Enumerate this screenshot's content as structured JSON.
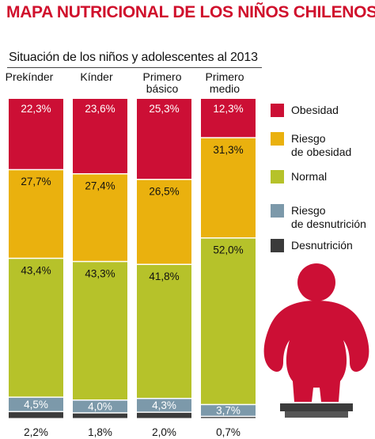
{
  "title": "MAPA NUTRICIONAL DE LOS NIÑOS CHILENOS",
  "subtitle": "Situación de los niños y adolescentes al 2013",
  "chart_data": {
    "type": "bar",
    "stacked": true,
    "orientation": "vertical",
    "normalized_to": 100,
    "categories": [
      "Prekínder",
      "Kínder",
      "Primero\nbásico",
      "Primero\nmedio"
    ],
    "series": [
      {
        "name": "Obesidad",
        "color": "#cc0f35",
        "values": [
          22.3,
          23.6,
          25.3,
          12.3
        ],
        "labels": [
          "22,3%",
          "23,6%",
          "25,3%",
          "12,3%"
        ]
      },
      {
        "name": "Riesgo\nde obesidad",
        "color": "#eab10e",
        "values": [
          27.7,
          27.4,
          26.5,
          31.3
        ],
        "labels": [
          "27,7%",
          "27,4%",
          "26,5%",
          "31,3%"
        ]
      },
      {
        "name": "Normal",
        "color": "#b6c22a",
        "values": [
          43.4,
          43.3,
          41.8,
          52.0
        ],
        "labels": [
          "43,4%",
          "43,3%",
          "41,8%",
          "52,0%"
        ]
      },
      {
        "name": "Riesgo\nde desnutrición",
        "color": "#7c99aa",
        "values": [
          4.5,
          4.0,
          4.3,
          3.7
        ],
        "labels": [
          "4,5%",
          "4,0%",
          "4,3%",
          "3,7%"
        ]
      },
      {
        "name": "Desnutrición",
        "color": "#3b3b3b",
        "values": [
          2.2,
          1.8,
          2.0,
          0.7
        ],
        "labels": [
          "2,2%",
          "1,8%",
          "2,0%",
          "0,7%"
        ]
      }
    ],
    "legend_position": "right",
    "grid": false
  },
  "colors": {
    "title": "#d0102c",
    "figure": "#cc0f35",
    "scale": "#3b3b3b"
  },
  "icon": "overweight-child-on-scale-icon"
}
